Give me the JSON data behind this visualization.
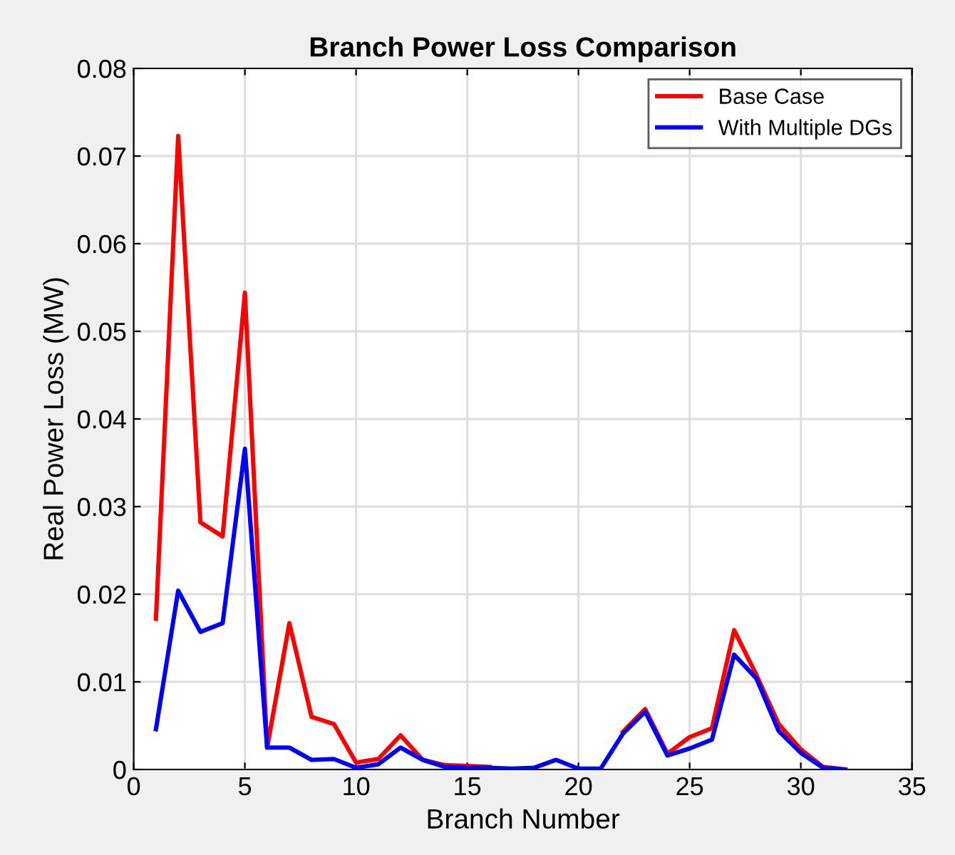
{
  "chart_data": {
    "type": "line",
    "title": "Branch Power Loss Comparison",
    "xlabel": "Branch Number",
    "ylabel": "Real Power Loss (MW)",
    "x": [
      1,
      2,
      3,
      4,
      5,
      6,
      7,
      8,
      9,
      10,
      11,
      12,
      13,
      14,
      15,
      16,
      17,
      18,
      19,
      20,
      21,
      22,
      23,
      24,
      25,
      26,
      27,
      28,
      29,
      30,
      31,
      32
    ],
    "series": [
      {
        "name": "Base Case",
        "color": "#ff0000",
        "values": [
          0.0172,
          0.0723,
          0.0282,
          0.0266,
          0.0544,
          0.0025,
          0.0167,
          0.006,
          0.0052,
          0.0008,
          0.0012,
          0.0039,
          0.0011,
          0.0005,
          0.0004,
          0.0003,
          null,
          null,
          null,
          null,
          null,
          0.0043,
          0.0069,
          0.0018,
          0.0037,
          0.0047,
          0.0159,
          0.0108,
          0.0052,
          0.0023,
          0.0003,
          0.0
        ]
      },
      {
        "name": "With Multiple DGs",
        "color": "#0000ff",
        "values": [
          0.0046,
          0.0204,
          0.0157,
          0.0167,
          0.0366,
          0.0025,
          0.0025,
          0.0011,
          0.0012,
          0.0002,
          0.0006,
          0.0025,
          0.0011,
          0.0003,
          0.0002,
          0.0002,
          0.0001,
          0.0002,
          0.0011,
          0.0001,
          0.0001,
          0.0041,
          0.0066,
          0.0016,
          0.0024,
          0.0034,
          0.0131,
          0.0104,
          0.0044,
          0.0019,
          0.0002,
          0.0
        ]
      }
    ],
    "xlim": [
      0,
      35
    ],
    "xticks": [
      0,
      5,
      10,
      15,
      20,
      25,
      30,
      35
    ],
    "ylim": [
      0,
      0.08
    ],
    "yticks": [
      0,
      0.01,
      0.02,
      0.03,
      0.04,
      0.05,
      0.06,
      0.07,
      0.08
    ],
    "grid": true,
    "legend": "top right",
    "marker": "none",
    "line_style": "solid"
  }
}
